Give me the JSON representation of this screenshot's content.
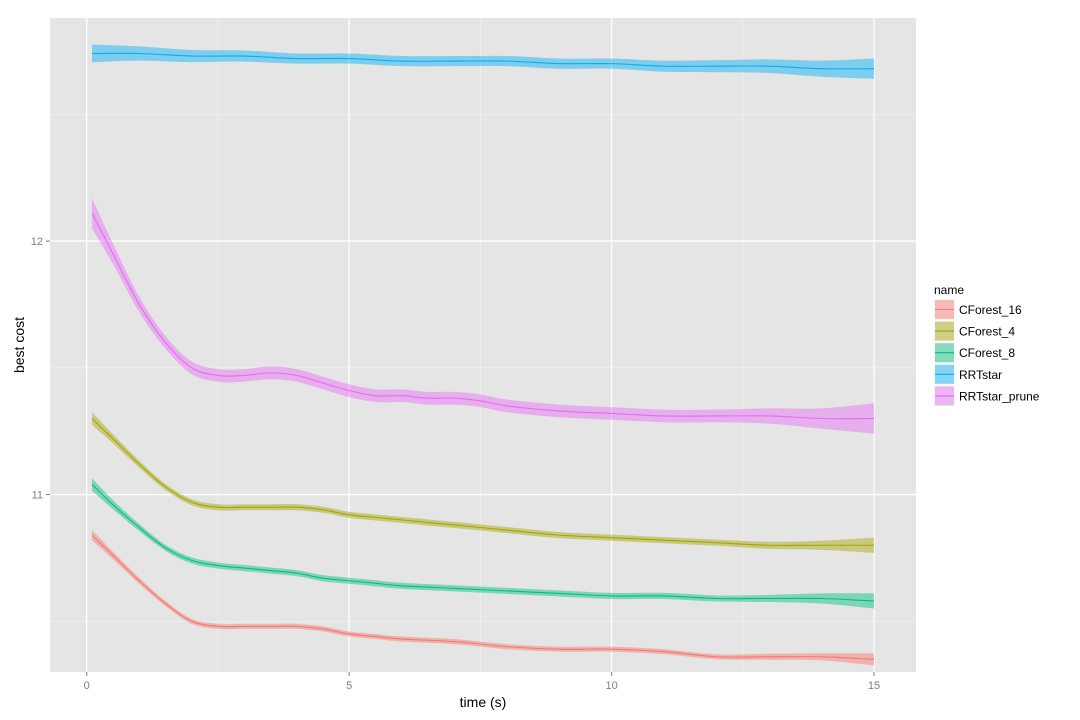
{
  "chart_data": {
    "type": "line",
    "xlabel": "time (s)",
    "ylabel": "best cost",
    "xlim": [
      -0.7,
      15.8
    ],
    "ylim": [
      10.3,
      12.88
    ],
    "x_ticks": [
      0,
      5,
      10,
      15
    ],
    "x_tick_labels": [
      "0",
      "5",
      "10",
      "15"
    ],
    "x_minor_ticks": [
      2.5,
      7.5,
      12.5
    ],
    "y_ticks": [
      11,
      12
    ],
    "y_tick_labels": [
      "11",
      "12"
    ],
    "y_minor_ticks": [
      10.5,
      11.5,
      12.5
    ],
    "grid": true,
    "background": "#e5e5e5",
    "legend": {
      "title": "name",
      "placement": "right"
    },
    "series": [
      {
        "name": "CForest_16",
        "color": "#f8766d",
        "x": [
          0.1,
          0.5,
          1,
          1.5,
          2,
          2.5,
          3,
          3.5,
          4,
          4.5,
          5,
          5.5,
          6,
          7,
          8,
          9,
          10,
          11,
          12,
          13,
          14,
          15
        ],
        "y": [
          10.84,
          10.76,
          10.66,
          10.57,
          10.5,
          10.48,
          10.48,
          10.48,
          10.48,
          10.47,
          10.45,
          10.44,
          10.43,
          10.42,
          10.4,
          10.39,
          10.39,
          10.38,
          10.36,
          10.36,
          10.36,
          10.35
        ],
        "band": [
          0.02,
          0.015,
          0.012,
          0.01,
          0.01,
          0.01,
          0.01,
          0.01,
          0.01,
          0.01,
          0.01,
          0.01,
          0.01,
          0.01,
          0.01,
          0.01,
          0.01,
          0.01,
          0.01,
          0.012,
          0.014,
          0.024
        ]
      },
      {
        "name": "CForest_4",
        "color": "#a3a500",
        "x": [
          0.1,
          0.5,
          1,
          1.5,
          2,
          2.5,
          3,
          3.5,
          4,
          4.5,
          5,
          5.5,
          6,
          7,
          8,
          9,
          10,
          11,
          12,
          13,
          14,
          15
        ],
        "y": [
          11.3,
          11.22,
          11.12,
          11.03,
          10.97,
          10.95,
          10.95,
          10.95,
          10.95,
          10.94,
          10.92,
          10.91,
          10.9,
          10.88,
          10.86,
          10.84,
          10.83,
          10.82,
          10.81,
          10.8,
          10.8,
          10.8
        ],
        "band": [
          0.025,
          0.018,
          0.014,
          0.012,
          0.012,
          0.012,
          0.012,
          0.012,
          0.012,
          0.012,
          0.012,
          0.012,
          0.012,
          0.012,
          0.012,
          0.012,
          0.012,
          0.012,
          0.012,
          0.014,
          0.018,
          0.03
        ]
      },
      {
        "name": "CForest_8",
        "color": "#00bf7d",
        "x": [
          0.1,
          0.5,
          1,
          1.5,
          2,
          2.5,
          3,
          3.5,
          4,
          4.5,
          5,
          5.5,
          6,
          7,
          8,
          9,
          10,
          11,
          12,
          13,
          14,
          15
        ],
        "y": [
          11.04,
          10.96,
          10.87,
          10.79,
          10.74,
          10.72,
          10.71,
          10.7,
          10.69,
          10.67,
          10.66,
          10.65,
          10.64,
          10.63,
          10.62,
          10.61,
          10.6,
          10.6,
          10.59,
          10.59,
          10.59,
          10.58
        ],
        "band": [
          0.025,
          0.018,
          0.014,
          0.012,
          0.012,
          0.012,
          0.012,
          0.012,
          0.012,
          0.012,
          0.012,
          0.012,
          0.012,
          0.012,
          0.012,
          0.012,
          0.012,
          0.012,
          0.012,
          0.014,
          0.02,
          0.03
        ]
      },
      {
        "name": "RRTstar",
        "color": "#00b0f6",
        "x": [
          0.1,
          1,
          2,
          3,
          4,
          5,
          6,
          7,
          8,
          9,
          10,
          11,
          12,
          13,
          14,
          15
        ],
        "y": [
          12.74,
          12.74,
          12.73,
          12.73,
          12.72,
          12.72,
          12.71,
          12.71,
          12.71,
          12.7,
          12.7,
          12.69,
          12.69,
          12.69,
          12.68,
          12.68
        ],
        "band": [
          0.035,
          0.028,
          0.024,
          0.022,
          0.02,
          0.02,
          0.02,
          0.02,
          0.02,
          0.02,
          0.02,
          0.022,
          0.024,
          0.027,
          0.032,
          0.04
        ]
      },
      {
        "name": "RRTstar_prune",
        "color": "#e76bf3",
        "x": [
          0.1,
          0.5,
          1,
          1.5,
          2,
          2.5,
          3,
          3.5,
          4,
          4.5,
          5,
          5.5,
          6,
          6.5,
          7,
          7.5,
          8,
          9,
          10,
          11,
          12,
          13,
          14,
          15
        ],
        "y": [
          12.11,
          11.95,
          11.75,
          11.6,
          11.5,
          11.47,
          11.47,
          11.48,
          11.47,
          11.44,
          11.41,
          11.39,
          11.39,
          11.38,
          11.38,
          11.37,
          11.35,
          11.33,
          11.32,
          11.31,
          11.31,
          11.31,
          11.3,
          11.3
        ],
        "band": [
          0.06,
          0.04,
          0.03,
          0.025,
          0.025,
          0.025,
          0.025,
          0.025,
          0.025,
          0.025,
          0.025,
          0.025,
          0.025,
          0.025,
          0.025,
          0.025,
          0.025,
          0.025,
          0.025,
          0.025,
          0.025,
          0.03,
          0.04,
          0.06
        ]
      }
    ]
  }
}
